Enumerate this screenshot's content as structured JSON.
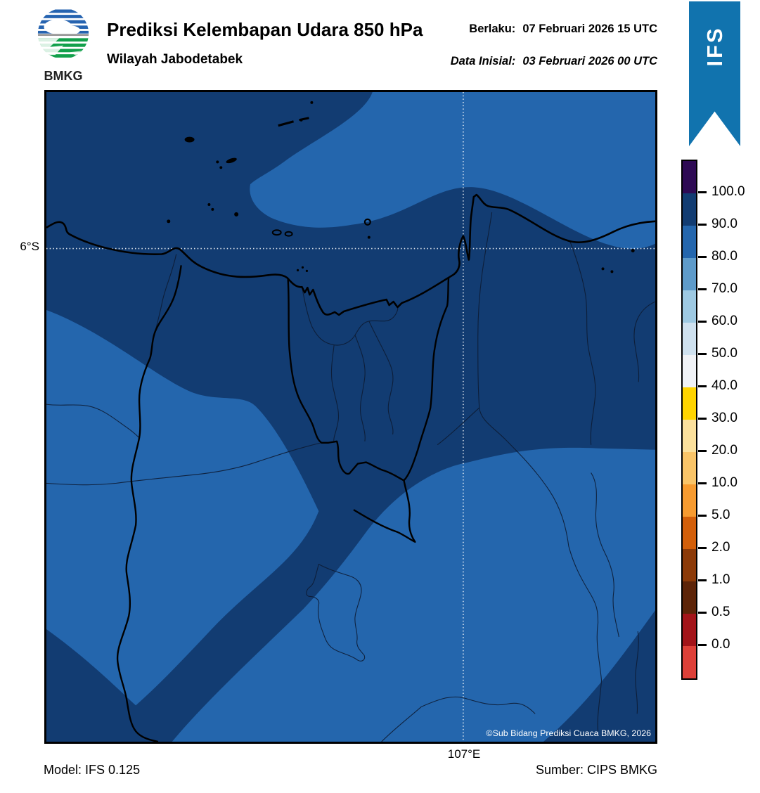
{
  "header": {
    "title": "Prediksi Kelembapan Udara 850 hPa",
    "subtitle": "Wilayah Jabodetabek",
    "valid_label": "Berlaku:",
    "valid_value": "07 Februari 2026 15 UTC",
    "init_label": "Data Inisial:",
    "init_value": "03 Februari 2026 00 UTC",
    "ribbon_label": "IFS",
    "logo_text": "BMKG"
  },
  "map": {
    "lat_label": "6°S",
    "lon_label": "107°E",
    "copyright": "©Sub Bidang Prediksi Cuaca BMKG, 2026"
  },
  "footer": {
    "model": "Model: IFS 0.125",
    "source": "Sumber: CIPS BMKG"
  },
  "colors": {
    "ribbon_blue": "#1173ae",
    "map_high_humidity": "#123c72",
    "map_mid_humidity": "#2466ad"
  },
  "chart_data": {
    "type": "heatmap",
    "title": "Prediksi Kelembapan Udara 850 hPa",
    "region": "Wilayah Jabodetabek",
    "valid_time": "07 Februari 2026 15 UTC",
    "initial_time": "03 Februari 2026 00 UTC",
    "model": "IFS 0.125",
    "source": "CIPS BMKG",
    "units": "%",
    "gridlines": {
      "latitude": "6°S",
      "longitude": "107°E"
    },
    "legend_position": "right",
    "colorbar_ticks": [
      100.0,
      90.0,
      80.0,
      70.0,
      60.0,
      50.0,
      40.0,
      30.0,
      20.0,
      10.0,
      5.0,
      2.0,
      1.0,
      0.5,
      0.0
    ],
    "values_shown_on_map": [
      {
        "range": "90.0–100.0",
        "color": "#123c72",
        "coverage": "top-left, central band through Jakarta–Bogor, east-central band, bottom-left and bottom-right corners"
      },
      {
        "range": "80.0–90.0",
        "color": "#2466ad",
        "coverage": "large lobe top-right/north-east, western lobe, south-central lobe"
      }
    ]
  },
  "colorbar": {
    "segments": [
      {
        "color": "#2e0a54",
        "label": "100.0"
      },
      {
        "color": "#123c72",
        "label": "90.0"
      },
      {
        "color": "#2466ad",
        "label": "80.0"
      },
      {
        "color": "#5e9bca",
        "label": "70.0"
      },
      {
        "color": "#9ec9e2",
        "label": "60.0"
      },
      {
        "color": "#cfe1ef",
        "label": "50.0"
      },
      {
        "color": "#f0f2f6",
        "label": "40.0"
      },
      {
        "color": "#ffd400",
        "label": "30.0"
      },
      {
        "color": "#fbe09c",
        "label": "20.0"
      },
      {
        "color": "#f9c468",
        "label": "10.0"
      },
      {
        "color": "#f79b30",
        "label": "5.0"
      },
      {
        "color": "#d35f0a",
        "label": "2.0"
      },
      {
        "color": "#8c3a08",
        "label": "1.0"
      },
      {
        "color": "#5d2408",
        "label": "0.5"
      },
      {
        "color": "#a31419",
        "label": "0.0"
      },
      {
        "color": "#de4038",
        "label": null
      }
    ]
  }
}
